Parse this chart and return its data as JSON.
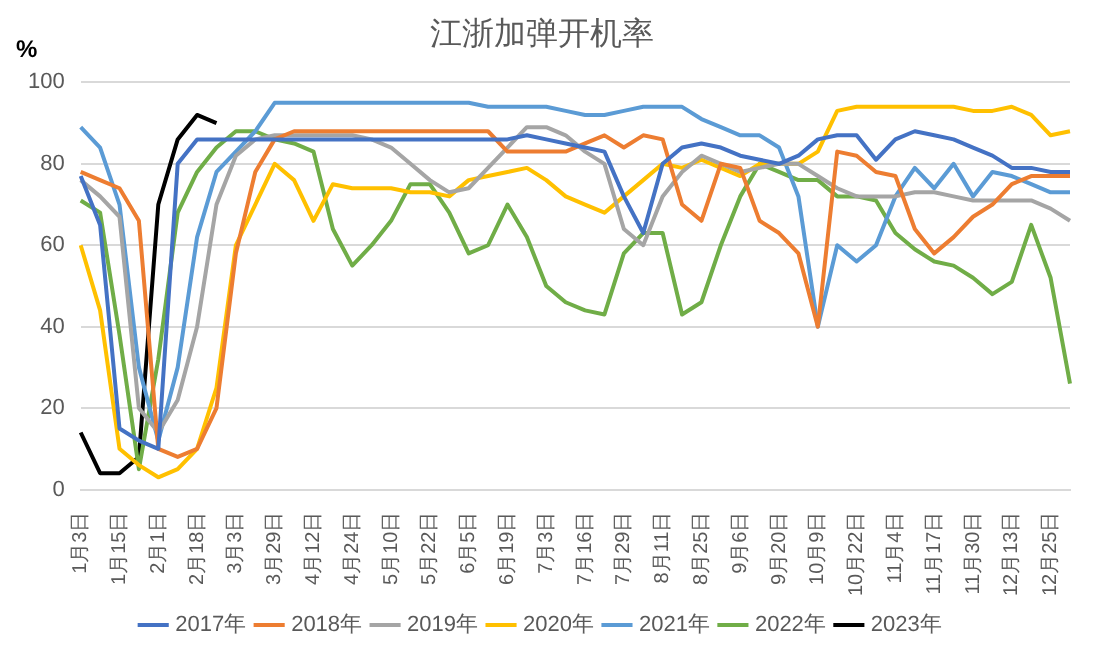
{
  "chart_data": {
    "type": "line",
    "title": "江浙加弹开机率",
    "ylabel": "%",
    "categories": [
      "1月3日",
      null,
      "1月15日",
      null,
      "2月1日",
      null,
      "2月18日",
      null,
      "3月3日",
      null,
      "3月29日",
      null,
      "4月12日",
      null,
      "4月24日",
      null,
      "5月10日",
      null,
      "5月22日",
      null,
      "6月5日",
      null,
      "6月19日",
      null,
      "7月3日",
      null,
      "7月16日",
      null,
      "7月29日",
      null,
      "8月11日",
      null,
      "8月25日",
      null,
      "9月6日",
      null,
      "9月20日",
      null,
      "10月9日",
      null,
      "10月22日",
      null,
      "11月4日",
      null,
      "11月17日",
      null,
      "11月30日",
      null,
      "12月13日",
      null,
      "12月25日",
      null
    ],
    "series": [
      {
        "name": "2017年",
        "color": "#4472c4",
        "values": [
          77,
          65,
          15,
          12,
          10,
          80,
          86,
          86,
          86,
          86,
          86,
          86,
          86,
          86,
          86,
          86,
          86,
          86,
          86,
          86,
          86,
          86,
          86,
          87,
          86,
          85,
          84,
          83,
          72,
          63,
          80,
          84,
          85,
          84,
          82,
          81,
          80,
          82,
          86,
          87,
          87,
          81,
          86,
          88,
          87,
          86,
          84,
          82,
          79,
          79,
          78,
          78
        ]
      },
      {
        "name": "2018年",
        "color": "#ed7d31",
        "values": [
          78,
          76,
          74,
          66,
          10,
          8,
          10,
          20,
          58,
          78,
          86,
          88,
          88,
          88,
          88,
          88,
          88,
          88,
          88,
          88,
          88,
          88,
          83,
          83,
          83,
          83,
          85,
          87,
          84,
          87,
          86,
          70,
          66,
          80,
          79,
          66,
          63,
          58,
          40,
          83,
          82,
          78,
          77,
          64,
          58,
          62,
          67,
          70,
          75,
          77,
          77,
          77
        ]
      },
      {
        "name": "2019年",
        "color": "#a5a5a5",
        "values": [
          76,
          72,
          67,
          20,
          14,
          22,
          40,
          70,
          82,
          86,
          87,
          87,
          87,
          87,
          87,
          86,
          84,
          80,
          76,
          73,
          74,
          79,
          84,
          89,
          89,
          87,
          83,
          80,
          64,
          60,
          72,
          78,
          82,
          80,
          78,
          79,
          80,
          80,
          77,
          74,
          72,
          72,
          72,
          73,
          73,
          72,
          71,
          71,
          71,
          71,
          69,
          66
        ]
      },
      {
        "name": "2020年",
        "color": "#ffc000",
        "values": [
          60,
          44,
          10,
          6,
          3,
          5,
          10,
          25,
          60,
          70,
          80,
          76,
          66,
          75,
          74,
          74,
          74,
          73,
          73,
          72,
          76,
          77,
          78,
          79,
          76,
          72,
          70,
          68,
          72,
          76,
          80,
          79,
          81,
          79,
          77,
          80,
          80,
          80,
          83,
          93,
          94,
          94,
          94,
          94,
          94,
          94,
          93,
          93,
          94,
          92,
          87,
          88
        ]
      },
      {
        "name": "2021年",
        "color": "#5b9bd5",
        "values": [
          89,
          84,
          70,
          30,
          12,
          30,
          62,
          78,
          83,
          88,
          95,
          95,
          95,
          95,
          95,
          95,
          95,
          95,
          95,
          95,
          95,
          94,
          94,
          94,
          94,
          93,
          92,
          92,
          93,
          94,
          94,
          94,
          91,
          89,
          87,
          87,
          84,
          72,
          40,
          60,
          56,
          60,
          72,
          79,
          74,
          80,
          72,
          78,
          77,
          75,
          73,
          73
        ]
      },
      {
        "name": "2022年",
        "color": "#70ad47",
        "values": [
          71,
          68,
          38,
          5,
          32,
          68,
          78,
          84,
          88,
          88,
          86,
          85,
          83,
          64,
          55,
          60,
          66,
          75,
          75,
          68,
          58,
          60,
          70,
          62,
          50,
          46,
          44,
          43,
          58,
          63,
          63,
          43,
          46,
          60,
          72,
          80,
          78,
          76,
          76,
          72,
          72,
          71,
          63,
          59,
          56,
          55,
          52,
          48,
          51,
          65,
          52,
          26
        ]
      },
      {
        "name": "2023年",
        "color": "#000000",
        "values": [
          14,
          4,
          4,
          8,
          70,
          86,
          92,
          90,
          null,
          null,
          null,
          null,
          null,
          null,
          null,
          null,
          null,
          null,
          null,
          null,
          null,
          null,
          null,
          null,
          null,
          null,
          null,
          null,
          null,
          null,
          null,
          null,
          null,
          null,
          null,
          null,
          null,
          null,
          null,
          null,
          null,
          null,
          null,
          null,
          null,
          null,
          null,
          null,
          null,
          null,
          null,
          null
        ]
      }
    ],
    "ylim": [
      0,
      100
    ],
    "yticks": [
      0,
      20,
      40,
      60,
      80,
      100
    ],
    "grid": "y",
    "legend": "bottom"
  }
}
